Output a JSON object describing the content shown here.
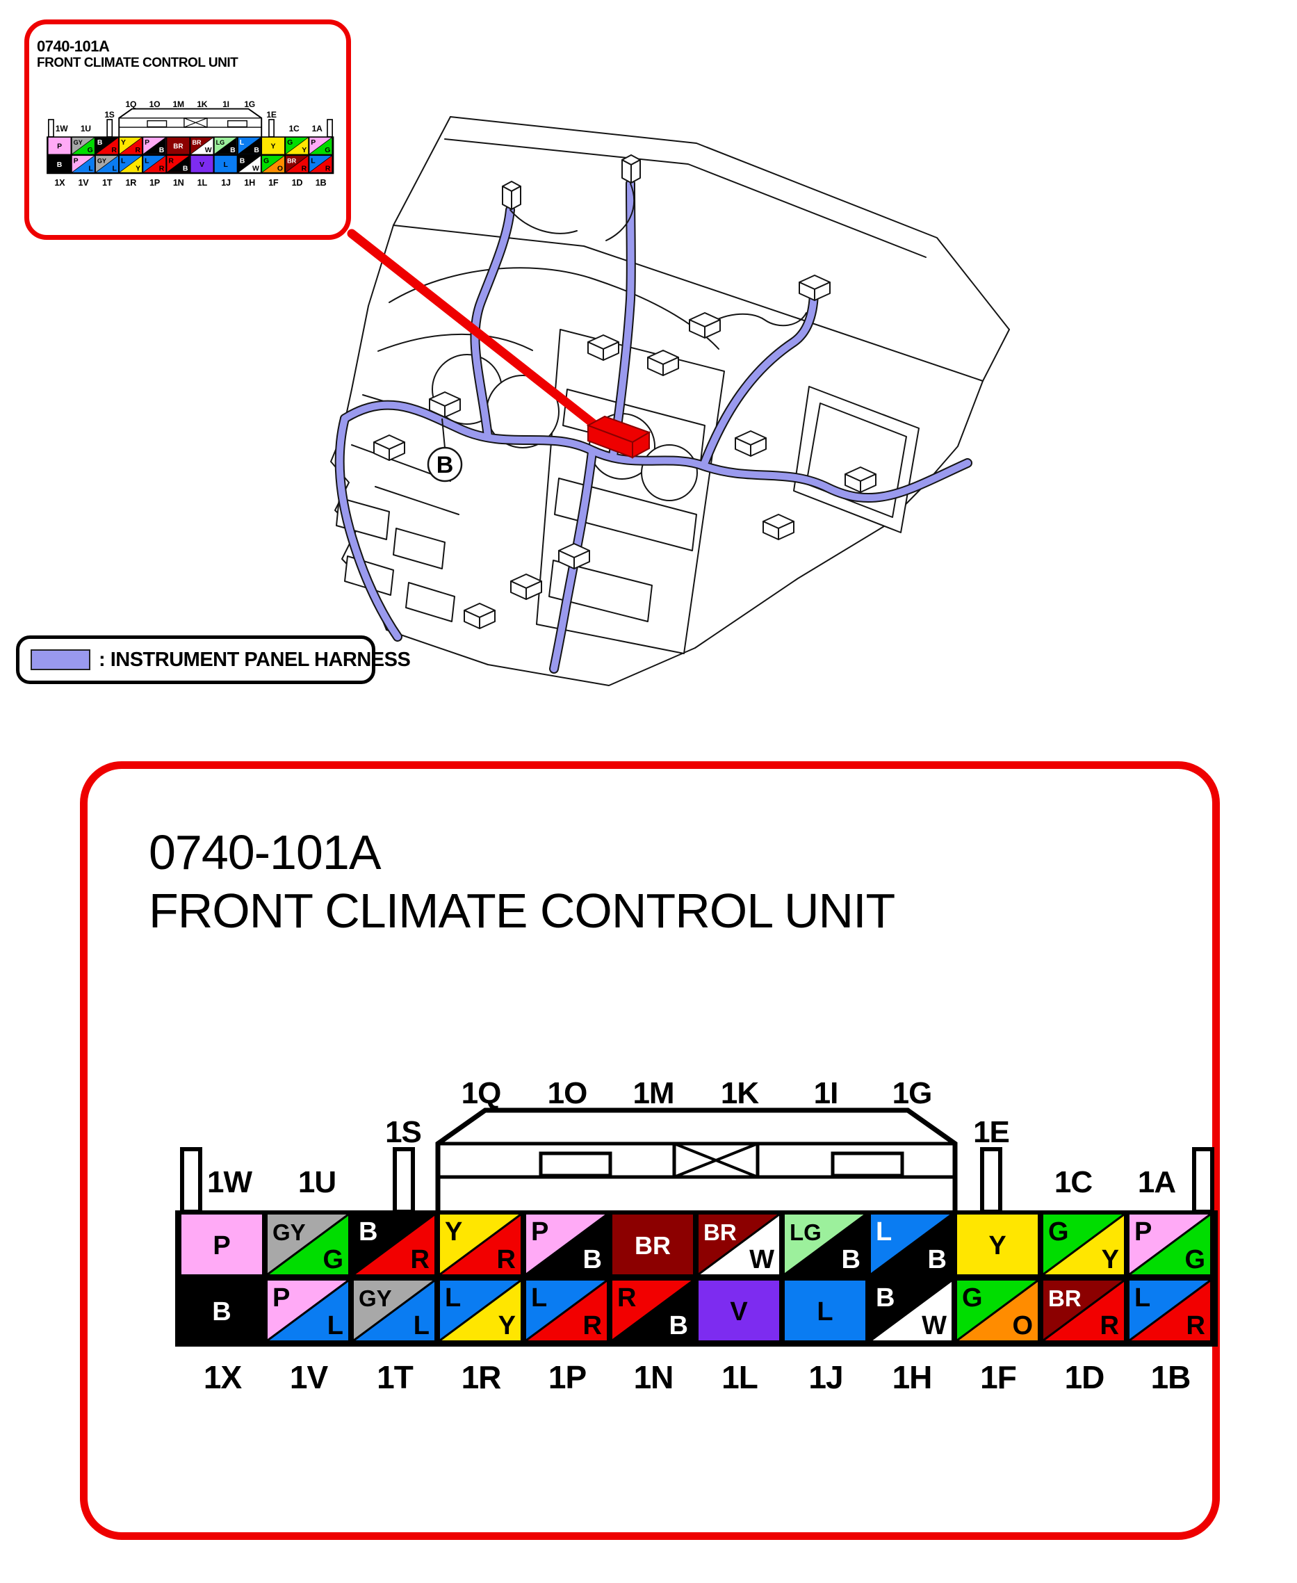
{
  "panel": {
    "code": "0740-101A",
    "name": "FRONT CLIMATE CONTROL UNIT"
  },
  "legend": {
    "label": ": INSTRUMENT PANEL HARNESS",
    "swatch_color": "#9999ee"
  },
  "scene": {
    "callout_label": "B",
    "harness_color": "#9a9aee",
    "arrow_color": "#ee0000"
  },
  "wire_colors": {
    "P": "#ffaaf6",
    "GY": "#a8a8a8",
    "B": "#000000",
    "R": "#f20000",
    "Y": "#ffe600",
    "BR": "#8c0000",
    "W": "#ffffff",
    "LG": "#9cf09c",
    "L": "#0a7cf2",
    "G": "#00dd00",
    "V": "#7d2cf0",
    "O": "#ff8c00"
  },
  "connector": {
    "housing_pins": [
      "1Q",
      "1O",
      "1M",
      "1K",
      "1I",
      "1G"
    ],
    "left_tab_pin": "1S",
    "right_tab_pin": "1E",
    "upper_left_pins": [
      "1W",
      "1U"
    ],
    "upper_right_pins": [
      "1C",
      "1A"
    ],
    "bottom_pins": [
      "1X",
      "1V",
      "1T",
      "1R",
      "1P",
      "1N",
      "1L",
      "1J",
      "1H",
      "1F",
      "1D",
      "1B"
    ],
    "top_row_cells": [
      {
        "pin": "1W",
        "codes": [
          "P"
        ],
        "text_colors": [
          "#000000"
        ]
      },
      {
        "pin": "1U",
        "codes": [
          "GY",
          "G"
        ],
        "text_colors": [
          "#000000",
          "#000000"
        ]
      },
      {
        "pin": "1S",
        "codes": [
          "B",
          "R"
        ],
        "text_colors": [
          "#ffffff",
          "#000000"
        ]
      },
      {
        "pin": "1Q",
        "codes": [
          "Y",
          "R"
        ],
        "text_colors": [
          "#000000",
          "#000000"
        ]
      },
      {
        "pin": "1O",
        "codes": [
          "P",
          "B"
        ],
        "text_colors": [
          "#000000",
          "#ffffff"
        ]
      },
      {
        "pin": "1M",
        "codes": [
          "BR"
        ],
        "text_colors": [
          "#ffffff"
        ]
      },
      {
        "pin": "1K",
        "codes": [
          "BR",
          "W"
        ],
        "text_colors": [
          "#ffffff",
          "#000000"
        ]
      },
      {
        "pin": "1I",
        "codes": [
          "LG",
          "B"
        ],
        "text_colors": [
          "#000000",
          "#ffffff"
        ]
      },
      {
        "pin": "1G",
        "codes": [
          "L",
          "B"
        ],
        "text_colors": [
          "#ffffff",
          "#ffffff"
        ]
      },
      {
        "pin": "1E",
        "codes": [
          "Y"
        ],
        "text_colors": [
          "#000000"
        ]
      },
      {
        "pin": "1C",
        "codes": [
          "G",
          "Y"
        ],
        "text_colors": [
          "#000000",
          "#000000"
        ]
      },
      {
        "pin": "1A",
        "codes": [
          "P",
          "G"
        ],
        "text_colors": [
          "#000000",
          "#000000"
        ]
      }
    ],
    "bottom_row_cells": [
      {
        "pin": "1X",
        "codes": [
          "B"
        ],
        "text_colors": [
          "#ffffff"
        ]
      },
      {
        "pin": "1V",
        "codes": [
          "P",
          "L"
        ],
        "text_colors": [
          "#000000",
          "#000000"
        ]
      },
      {
        "pin": "1T",
        "codes": [
          "GY",
          "L"
        ],
        "text_colors": [
          "#000000",
          "#000000"
        ]
      },
      {
        "pin": "1R",
        "codes": [
          "L",
          "Y"
        ],
        "text_colors": [
          "#000000",
          "#000000"
        ]
      },
      {
        "pin": "1P",
        "codes": [
          "L",
          "R"
        ],
        "text_colors": [
          "#000000",
          "#000000"
        ]
      },
      {
        "pin": "1N",
        "codes": [
          "R",
          "B"
        ],
        "text_colors": [
          "#000000",
          "#ffffff"
        ]
      },
      {
        "pin": "1L",
        "codes": [
          "V"
        ],
        "text_colors": [
          "#000000"
        ]
      },
      {
        "pin": "1J",
        "codes": [
          "L"
        ],
        "text_colors": [
          "#000000"
        ]
      },
      {
        "pin": "1H",
        "codes": [
          "B",
          "W"
        ],
        "text_colors": [
          "#ffffff",
          "#000000"
        ]
      },
      {
        "pin": "1F",
        "codes": [
          "G",
          "O"
        ],
        "text_colors": [
          "#000000",
          "#000000"
        ]
      },
      {
        "pin": "1D",
        "codes": [
          "BR",
          "R"
        ],
        "text_colors": [
          "#ffffff",
          "#000000"
        ]
      },
      {
        "pin": "1B",
        "codes": [
          "L",
          "R"
        ],
        "text_colors": [
          "#000000",
          "#000000"
        ]
      }
    ]
  }
}
